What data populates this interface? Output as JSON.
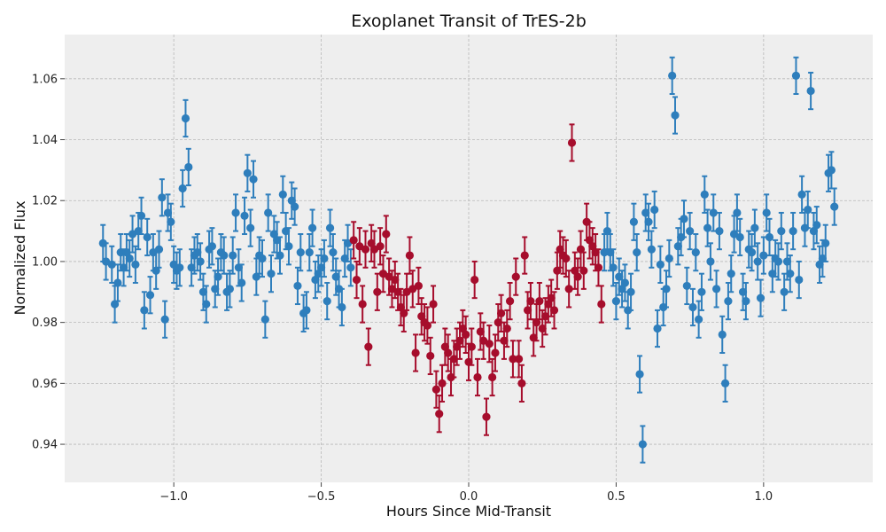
{
  "chart_data": {
    "type": "scatter",
    "title": "Exoplanet Transit of TrES-2b",
    "xlabel": "Hours Since Mid-Transit",
    "ylabel": "Normalized Flux",
    "xlim": [
      -1.37,
      1.37
    ],
    "ylim": [
      0.9275,
      1.0745
    ],
    "x_ticks": [
      -1.0,
      -0.5,
      0.0,
      0.5,
      1.0
    ],
    "x_tick_labels": [
      "−1.0",
      "−0.5",
      "0.0",
      "0.5",
      "1.0"
    ],
    "y_ticks": [
      0.94,
      0.96,
      0.98,
      1.0,
      1.02,
      1.04,
      1.06
    ],
    "y_tick_labels": [
      "0.94",
      "0.96",
      "0.98",
      "1.00",
      "1.02",
      "1.04",
      "1.06"
    ],
    "grid": true,
    "error_bar": 0.006,
    "colors": {
      "out_of_transit": "#2e7ebc",
      "in_transit": "#a60d2c",
      "plot_background": "#eeeeee",
      "grid": "#b8b8b8"
    },
    "series": [
      {
        "color_key": "out_of_transit",
        "x": [
          -1.24,
          -1.23,
          -1.21,
          -1.2,
          -1.19,
          -1.18,
          -1.17,
          -1.16,
          -1.15,
          -1.14,
          -1.13,
          -1.12,
          -1.11,
          -1.1,
          -1.09,
          -1.08,
          -1.07,
          -1.06,
          -1.05,
          -1.04,
          -1.03,
          -1.02,
          -1.01,
          -1.0,
          -0.99,
          -0.98,
          -0.97,
          -0.96,
          -0.95,
          -0.94,
          -0.93,
          -0.92,
          -0.91,
          -0.9,
          -0.89,
          -0.88,
          -0.87,
          -0.86,
          -0.85,
          -0.84,
          -0.83,
          -0.82,
          -0.81,
          -0.8,
          -0.79,
          -0.78,
          -0.77,
          -0.76,
          -0.75,
          -0.74,
          -0.73,
          -0.72,
          -0.71,
          -0.7,
          -0.69,
          -0.68,
          -0.67,
          -0.66,
          -0.65,
          -0.64,
          -0.63,
          -0.62,
          -0.61,
          -0.6,
          -0.59,
          -0.58,
          -0.57,
          -0.56,
          -0.55,
          -0.54,
          -0.53,
          -0.52,
          -0.51,
          -0.5,
          -0.49,
          -0.48,
          -0.47,
          -0.46,
          -0.45,
          -0.44,
          -0.43,
          -0.42,
          -0.41,
          -0.4,
          0.46,
          0.47,
          0.48,
          0.49,
          0.5,
          0.51,
          0.52,
          0.53,
          0.54,
          0.55,
          0.56,
          0.57,
          0.58,
          0.59,
          0.6,
          0.61,
          0.62,
          0.63,
          0.64,
          0.65,
          0.66,
          0.67,
          0.68,
          0.69,
          0.7,
          0.71,
          0.72,
          0.73,
          0.74,
          0.75,
          0.76,
          0.77,
          0.78,
          0.79,
          0.8,
          0.81,
          0.82,
          0.83,
          0.84,
          0.85,
          0.86,
          0.87,
          0.88,
          0.89,
          0.9,
          0.91,
          0.92,
          0.93,
          0.94,
          0.95,
          0.96,
          0.97,
          0.98,
          0.99,
          1.0,
          1.01,
          1.02,
          1.03,
          1.04,
          1.05,
          1.06,
          1.07,
          1.08,
          1.09,
          1.1,
          1.11,
          1.12,
          1.13,
          1.14,
          1.15,
          1.16,
          1.17,
          1.18,
          1.19,
          1.2,
          1.21,
          1.22,
          1.23,
          1.24
        ],
        "y": [
          1.006,
          1.0,
          0.999,
          0.986,
          0.993,
          1.003,
          0.998,
          1.003,
          1.001,
          1.009,
          0.999,
          1.01,
          1.015,
          0.984,
          1.008,
          0.989,
          1.003,
          0.997,
          1.004,
          1.021,
          0.981,
          1.016,
          1.013,
          0.999,
          0.997,
          0.998,
          1.024,
          1.047,
          1.031,
          0.998,
          1.002,
          1.003,
          1.0,
          0.99,
          0.986,
          1.004,
          1.005,
          0.991,
          0.995,
          1.003,
          1.002,
          0.99,
          0.991,
          1.002,
          1.016,
          0.998,
          0.993,
          1.015,
          1.029,
          1.011,
          1.027,
          0.995,
          1.002,
          1.001,
          0.981,
          1.016,
          0.996,
          1.009,
          1.007,
          1.002,
          1.022,
          1.01,
          1.005,
          1.02,
          1.018,
          0.992,
          1.003,
          0.983,
          0.984,
          1.003,
          1.011,
          0.994,
          0.996,
          0.998,
          1.001,
          0.987,
          1.011,
          1.003,
          0.995,
          0.991,
          0.985,
          1.001,
          1.006,
          0.998,
          1.003,
          1.01,
          1.003,
          0.998,
          0.987,
          0.995,
          0.991,
          0.993,
          0.984,
          0.99,
          1.013,
          1.003,
          0.963,
          0.94,
          1.016,
          1.013,
          1.004,
          1.017,
          0.978,
          0.999,
          0.985,
          0.991,
          1.001,
          1.061,
          1.048,
          1.005,
          1.008,
          1.014,
          0.992,
          1.01,
          0.985,
          1.003,
          0.981,
          0.99,
          1.022,
          1.011,
          1.0,
          1.016,
          0.991,
          1.01,
          0.976,
          0.96,
          0.987,
          0.996,
          1.009,
          1.016,
          1.008,
          0.99,
          0.987,
          1.004,
          1.003,
          1.011,
          1.0,
          0.988,
          1.002,
          1.016,
          1.008,
          0.996,
          1.001,
          1.0,
          1.01,
          0.99,
          1.0,
          0.996,
          1.01,
          1.061,
          0.994,
          1.022,
          1.011,
          1.017,
          1.056,
          1.01,
          1.012,
          0.999,
          1.001,
          1.006,
          1.029,
          1.03,
          1.018
        ]
      },
      {
        "color_key": "in_transit",
        "x": [
          -0.39,
          -0.38,
          -0.37,
          -0.36,
          -0.35,
          -0.34,
          -0.33,
          -0.32,
          -0.31,
          -0.3,
          -0.29,
          -0.28,
          -0.27,
          -0.26,
          -0.25,
          -0.24,
          -0.23,
          -0.22,
          -0.21,
          -0.2,
          -0.19,
          -0.18,
          -0.17,
          -0.16,
          -0.15,
          -0.14,
          -0.13,
          -0.12,
          -0.11,
          -0.1,
          -0.09,
          -0.08,
          -0.07,
          -0.06,
          -0.05,
          -0.04,
          -0.03,
          -0.02,
          -0.01,
          0.0,
          0.01,
          0.02,
          0.03,
          0.04,
          0.05,
          0.06,
          0.07,
          0.08,
          0.09,
          0.1,
          0.11,
          0.12,
          0.13,
          0.14,
          0.15,
          0.16,
          0.17,
          0.18,
          0.19,
          0.2,
          0.21,
          0.22,
          0.23,
          0.24,
          0.25,
          0.26,
          0.27,
          0.28,
          0.29,
          0.3,
          0.31,
          0.32,
          0.33,
          0.34,
          0.35,
          0.36,
          0.37,
          0.38,
          0.39,
          0.4,
          0.41,
          0.42,
          0.43,
          0.44,
          0.45
        ],
        "y": [
          1.007,
          0.994,
          1.005,
          0.986,
          1.004,
          0.972,
          1.006,
          1.004,
          0.99,
          1.005,
          0.996,
          1.009,
          0.995,
          0.991,
          0.994,
          0.99,
          0.985,
          0.983,
          0.99,
          1.002,
          0.991,
          0.97,
          0.992,
          0.982,
          0.98,
          0.979,
          0.969,
          0.986,
          0.958,
          0.95,
          0.96,
          0.972,
          0.97,
          0.962,
          0.968,
          0.972,
          0.974,
          0.978,
          0.976,
          0.967,
          0.972,
          0.994,
          0.962,
          0.977,
          0.974,
          0.949,
          0.973,
          0.962,
          0.97,
          0.98,
          0.983,
          0.974,
          0.978,
          0.987,
          0.968,
          0.995,
          0.968,
          0.96,
          1.002,
          0.984,
          0.987,
          0.975,
          0.98,
          0.987,
          0.978,
          0.982,
          0.986,
          0.988,
          0.984,
          0.997,
          1.004,
          1.002,
          1.001,
          0.991,
          1.039,
          0.997,
          0.995,
          1.004,
          0.997,
          1.013,
          1.007,
          1.005,
          1.003,
          0.998,
          0.986
        ]
      }
    ]
  }
}
